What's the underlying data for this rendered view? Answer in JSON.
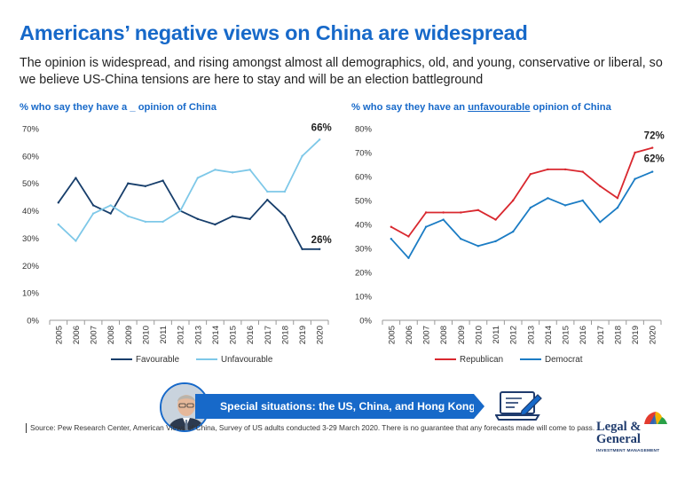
{
  "header": {
    "title": "Americans’ negative views on China are widespread",
    "subtitle": "The opinion is widespread, and rising amongst almost all demographics, old, and young, conservative or liberal, so we believe US-China tensions are here to stay and will be an election battleground"
  },
  "colors": {
    "brand_blue": "#1769c9",
    "favourable": "#173e6b",
    "unfavourable": "#7ec8e8",
    "republican": "#d9282f",
    "democrat": "#1b7cc4"
  },
  "chart_data": [
    {
      "type": "line",
      "title_prefix": "% who say they have a ",
      "title_blank": "_",
      "title_suffix": " opinion of China",
      "x": [
        "2005",
        "2006",
        "2007",
        "2008",
        "2009",
        "2010",
        "2011",
        "2012",
        "2013",
        "2014",
        "2015",
        "2016",
        "2017",
        "2018",
        "2019",
        "2020"
      ],
      "ylim": [
        0,
        70
      ],
      "yticks": [
        0,
        10,
        20,
        30,
        40,
        50,
        60,
        70
      ],
      "ytick_labels": [
        "0%",
        "10%",
        "20%",
        "30%",
        "40%",
        "50%",
        "60%",
        "70%"
      ],
      "grid": false,
      "legend": "bottom",
      "series": [
        {
          "name": "Favourable",
          "color": "#173e6b",
          "values": [
            43,
            52,
            42,
            39,
            50,
            49,
            51,
            40,
            37,
            35,
            38,
            37,
            44,
            38,
            26,
            26
          ],
          "end_label": "26%"
        },
        {
          "name": "Unfavourable",
          "color": "#7ec8e8",
          "values": [
            35,
            29,
            39,
            42,
            38,
            36,
            36,
            40,
            52,
            55,
            54,
            55,
            47,
            47,
            60,
            66
          ],
          "end_label": "66%"
        }
      ]
    },
    {
      "type": "line",
      "title_prefix": "% who say they have an ",
      "title_blank": "unfavourable",
      "title_suffix": " opinion of China",
      "x": [
        "2005",
        "2006",
        "2007",
        "2008",
        "2009",
        "2010",
        "2011",
        "2012",
        "2013",
        "2014",
        "2015",
        "2016",
        "2017",
        "2018",
        "2019",
        "2020"
      ],
      "ylim": [
        0,
        80
      ],
      "yticks": [
        0,
        10,
        20,
        30,
        40,
        50,
        60,
        70,
        80
      ],
      "ytick_labels": [
        "0%",
        "10%",
        "20%",
        "30%",
        "40%",
        "50%",
        "60%",
        "70%",
        "80%"
      ],
      "grid": false,
      "legend": "bottom",
      "series": [
        {
          "name": "Republican",
          "color": "#d9282f",
          "values": [
            39,
            35,
            45,
            45,
            45,
            46,
            42,
            50,
            61,
            63,
            63,
            62,
            56,
            51,
            70,
            72
          ],
          "end_label": "72%"
        },
        {
          "name": "Democrat",
          "color": "#1b7cc4",
          "values": [
            34,
            26,
            39,
            42,
            34,
            31,
            33,
            37,
            47,
            51,
            48,
            50,
            41,
            47,
            59,
            62
          ],
          "end_label": "62%"
        }
      ]
    }
  ],
  "banner": {
    "label": "Special situations: the US, China, and Hong Kong",
    "avatar_icon": "person-portrait-icon",
    "action_icon": "laptop-pen-icon"
  },
  "footer": {
    "source": "Source: Pew Research Center, American Views of China, Survey of US adults conducted  3-29 March 2020. There is no guarantee that any forecasts made will come to pass.",
    "logo_line1": "Legal &",
    "logo_line2": "General",
    "logo_sub": "INVESTMENT MANAGEMENT",
    "logo_icon": "umbrella-logo-icon"
  }
}
